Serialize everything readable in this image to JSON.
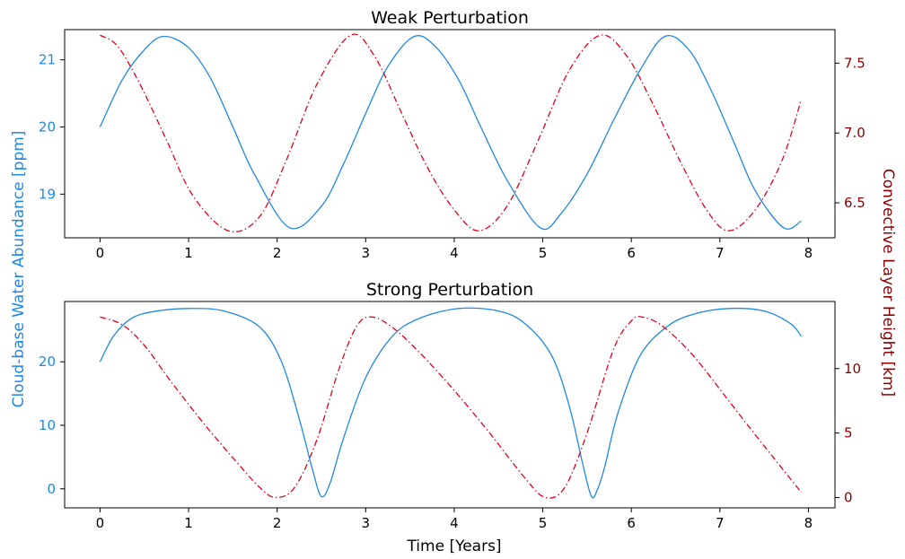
{
  "colors": {
    "water": "#1e88e5",
    "height": "#e0001b",
    "height_axis": "#8b0000"
  },
  "labels": {
    "ylabel_left": "Cloud-base Water Abundance [ppm]",
    "ylabel_right": "Convective Layer Height [km]",
    "xlabel": "Time [Years]"
  },
  "chart_data": [
    {
      "type": "line",
      "title": "Weak Perturbation",
      "xlabel": "",
      "xlim": [
        -0.4,
        8.3
      ],
      "x_ticks": [
        0,
        1,
        2,
        3,
        4,
        5,
        6,
        7,
        8
      ],
      "ylim_left": [
        18.35,
        21.45
      ],
      "ylim_right": [
        6.25,
        7.74
      ],
      "y_ticks_left": [
        19,
        20,
        21
      ],
      "y_ticks_right": [
        6.5,
        7.0,
        7.5
      ],
      "y_tick_labels_right": [
        "6.5",
        "7.0",
        "7.5"
      ],
      "series": [
        {
          "axis": "left",
          "style": "solid",
          "x": [
            0,
            0.25,
            0.5,
            0.72,
            1.0,
            1.25,
            1.5,
            1.75,
            2.14,
            2.5,
            2.75,
            3.0,
            3.25,
            3.55,
            3.8,
            4.05,
            4.3,
            4.6,
            4.97,
            5.2,
            5.5,
            5.8,
            6.1,
            6.38,
            6.65,
            6.9,
            7.15,
            7.4,
            7.72,
            7.92
          ],
          "y": [
            20.0,
            20.7,
            21.15,
            21.35,
            21.18,
            20.72,
            20.0,
            19.28,
            18.5,
            18.82,
            19.45,
            20.2,
            20.9,
            21.35,
            21.18,
            20.7,
            20.0,
            19.2,
            18.5,
            18.7,
            19.3,
            20.1,
            20.85,
            21.35,
            21.15,
            20.55,
            19.8,
            19.05,
            18.5,
            18.6
          ]
        },
        {
          "axis": "right",
          "style": "dashdot",
          "x": [
            0,
            0.2,
            0.45,
            0.75,
            1.05,
            1.45,
            1.8,
            2.1,
            2.45,
            2.83,
            3.1,
            3.4,
            3.7,
            4.0,
            4.28,
            4.6,
            4.95,
            5.3,
            5.65,
            5.95,
            6.25,
            6.55,
            6.85,
            7.1,
            7.4,
            7.7,
            7.92
          ],
          "y": [
            7.7,
            7.62,
            7.35,
            6.95,
            6.55,
            6.3,
            6.4,
            6.8,
            7.35,
            7.7,
            7.55,
            7.15,
            6.75,
            6.45,
            6.3,
            6.48,
            6.95,
            7.45,
            7.7,
            7.55,
            7.2,
            6.8,
            6.45,
            6.3,
            6.45,
            6.8,
            7.24
          ]
        }
      ]
    },
    {
      "type": "line",
      "title": "Strong Perturbation",
      "xlabel": "Time [Years]",
      "xlim": [
        -0.4,
        8.3
      ],
      "x_ticks": [
        0,
        1,
        2,
        3,
        4,
        5,
        6,
        7,
        8
      ],
      "ylim_left": [
        -3,
        29.5
      ],
      "ylim_right": [
        -0.8,
        15.2
      ],
      "y_ticks_left": [
        0,
        10,
        20
      ],
      "y_ticks_right": [
        0,
        5,
        10
      ],
      "y_tick_labels_right": [
        "0",
        "5",
        "10"
      ],
      "series": [
        {
          "axis": "left",
          "style": "solid",
          "x": [
            0,
            0.15,
            0.35,
            0.6,
            1.0,
            1.4,
            1.8,
            2.05,
            2.25,
            2.4,
            2.5,
            2.6,
            2.75,
            3.0,
            3.3,
            3.6,
            4.05,
            4.5,
            4.8,
            5.1,
            5.3,
            5.45,
            5.55,
            5.62,
            5.7,
            5.85,
            6.1,
            6.4,
            6.7,
            7.1,
            7.5,
            7.8,
            7.92
          ],
          "y": [
            20,
            24,
            26.8,
            27.9,
            28.4,
            28.0,
            25.5,
            20.0,
            11.0,
            3.0,
            -1.2,
            1.0,
            8.0,
            17.5,
            24.0,
            26.8,
            28.4,
            28.0,
            26.0,
            21.0,
            13.0,
            4.0,
            -1.2,
            0.0,
            3.5,
            12.0,
            21.0,
            25.5,
            27.5,
            28.4,
            28.0,
            26.0,
            24.0
          ]
        },
        {
          "axis": "right",
          "style": "dashdot",
          "x": [
            0,
            0.25,
            0.5,
            0.8,
            1.2,
            1.6,
            1.8,
            1.98,
            2.2,
            2.45,
            2.7,
            2.9,
            3.07,
            3.3,
            3.6,
            4.0,
            4.4,
            4.8,
            5.03,
            5.25,
            5.5,
            5.8,
            6.0,
            6.12,
            6.35,
            6.7,
            7.1,
            7.5,
            7.92
          ],
          "y": [
            14.0,
            13.4,
            11.8,
            9.0,
            5.5,
            2.3,
            0.8,
            0.0,
            0.8,
            4.5,
            10.0,
            13.3,
            14.0,
            13.2,
            11.3,
            8.3,
            5.0,
            1.5,
            0.0,
            0.8,
            5.0,
            11.5,
            13.7,
            14.0,
            13.3,
            11.0,
            7.5,
            4.0,
            0.4
          ]
        }
      ]
    }
  ]
}
